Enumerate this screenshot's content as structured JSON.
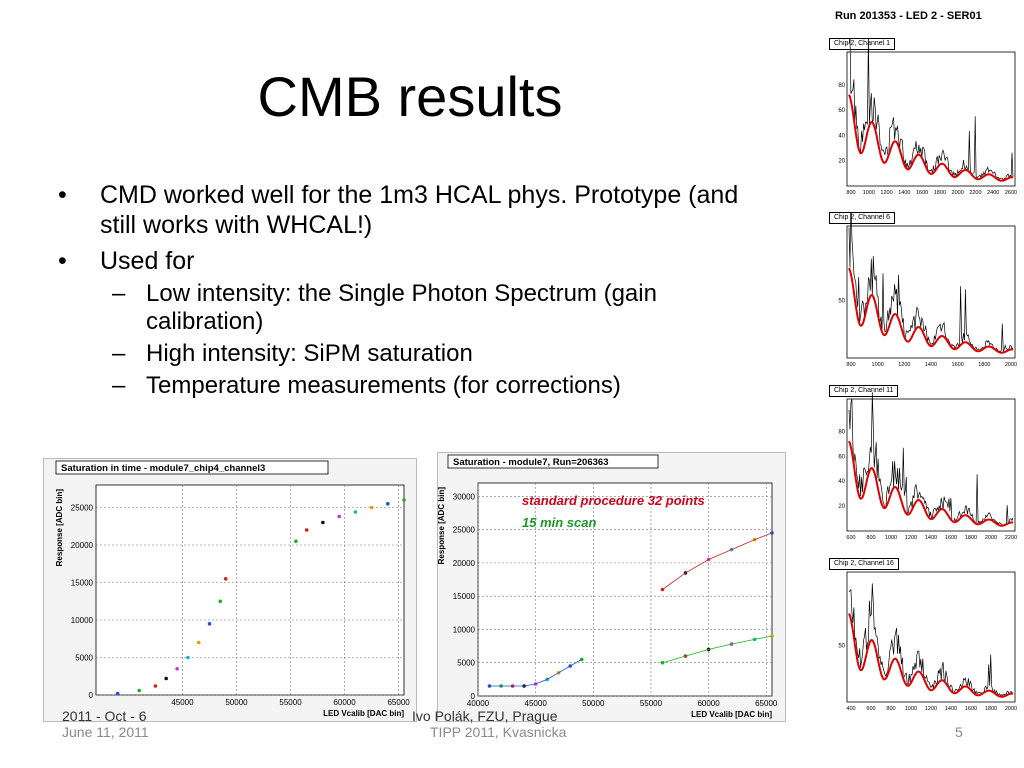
{
  "slide": {
    "title": "CMB results",
    "bullets": [
      {
        "text": "CMD worked well for the 1m3 HCAL phys. Prototype (and still works with WHCAL!)",
        "sub": []
      },
      {
        "text": "Used for",
        "sub": [
          "Low intensity: the Single Photon Spectrum (gain calibration)",
          "High intensity: SiPM saturation",
          "Temperature measurements (for corrections)"
        ]
      }
    ],
    "bullet_marker": "•",
    "sub_marker": "–"
  },
  "footer": {
    "date": "June 11, 2011",
    "center": "TIPP 2011, Kvasnicka",
    "page": "5",
    "occluded_left": "2011 - Oct - 6",
    "occluded_center": "Ivo Polák, FZU, Prague"
  },
  "spectra": {
    "run_title": "Run 201353 - LED  2 - SER01",
    "panels": [
      {
        "label": "Chip 2, Channel 1",
        "yticks": [
          "20",
          "40",
          "60",
          "80"
        ],
        "xticks": [
          "800",
          "1000",
          "1200",
          "1400",
          "1600",
          "1800",
          "2000",
          "2200",
          "2400",
          "2600"
        ]
      },
      {
        "label": "Chip 2, Channel 6",
        "yticks": [
          "50"
        ],
        "xticks": [
          "800",
          "1000",
          "1200",
          "1400",
          "1600",
          "1800",
          "2000"
        ]
      },
      {
        "label": "Chip 2, Channel 11",
        "yticks": [
          "20",
          "40",
          "60",
          "80"
        ],
        "xticks": [
          "600",
          "800",
          "1000",
          "1200",
          "1400",
          "1600",
          "1800",
          "2000",
          "2200"
        ]
      },
      {
        "label": "Chip 2, Channel 16",
        "yticks": [
          "50"
        ],
        "xticks": [
          "400",
          "600",
          "800",
          "1000",
          "1200",
          "1400",
          "1600",
          "1800",
          "2000"
        ]
      }
    ]
  },
  "chart_data": [
    {
      "type": "scatter",
      "title": "Saturation in time - module7_chip4_channel3",
      "xlabel": "LED Vcalib [DAC bin]",
      "ylabel": "Response [ADC bin]",
      "xlim": [
        37000,
        65500
      ],
      "ylim": [
        0,
        28000
      ],
      "xticks": [
        "45000",
        "50000",
        "55000",
        "60000",
        "65000"
      ],
      "yticks": [
        "0",
        "5000",
        "10000",
        "15000",
        "20000",
        "25000"
      ],
      "grid": true,
      "series": [
        {
          "x": [
            39000,
            41000,
            42500,
            43500,
            44500,
            45500,
            46500,
            47500,
            48500,
            49000
          ],
          "y": [
            200,
            600,
            1200,
            2200,
            3500,
            5000,
            7000,
            9500,
            12500,
            15500
          ]
        },
        {
          "x": [
            55500,
            56500,
            58000,
            59500,
            61000,
            62500,
            64000,
            65500
          ],
          "y": [
            20500,
            22000,
            23000,
            23800,
            24400,
            25000,
            25500,
            26000
          ]
        }
      ]
    },
    {
      "type": "scatter",
      "title": "Saturation - module7, Run=206363",
      "xlabel": "LED Vcalib [DAC bin]",
      "ylabel": "Response [ADC bin]",
      "xlim": [
        40000,
        65500
      ],
      "ylim": [
        0,
        32000
      ],
      "xticks": [
        "40000",
        "45000",
        "50000",
        "55000",
        "60000",
        "65000"
      ],
      "yticks": [
        "0",
        "5000",
        "10000",
        "15000",
        "20000",
        "25000",
        "30000"
      ],
      "grid": true,
      "annotations": [
        "standard procedure 32 points",
        "15 min scan"
      ],
      "annotation_colors": [
        "#d0021b",
        "#1a9a2a"
      ],
      "series": [
        {
          "x": [
            41000,
            42000,
            43000,
            44000,
            45000,
            46000,
            47000,
            48000,
            49000
          ],
          "y": [
            1500,
            1500,
            1500,
            1500,
            1800,
            2500,
            3500,
            4500,
            5500
          ]
        },
        {
          "x": [
            56000,
            58000,
            60000,
            62000,
            64000,
            65500
          ],
          "y": [
            5000,
            6000,
            7000,
            7800,
            8500,
            9000
          ]
        },
        {
          "x": [
            56000,
            58000,
            60000,
            62000,
            64000,
            65500
          ],
          "y": [
            16000,
            18500,
            20500,
            22000,
            23500,
            24500
          ]
        }
      ]
    }
  ],
  "colors": {
    "spectrum_fit": "#e00000",
    "spectrum_data": "#000000",
    "footer_text": "#8a8a8a"
  }
}
